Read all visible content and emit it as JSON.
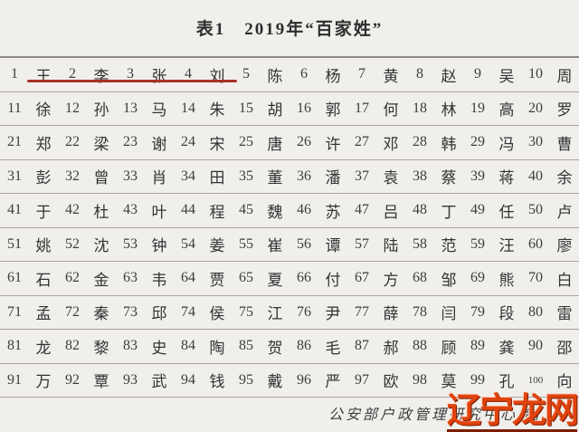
{
  "title": "表1　2019年“百家姓”",
  "rows": [
    [
      {
        "n": "1",
        "s": "王"
      },
      {
        "n": "2",
        "s": "李"
      },
      {
        "n": "3",
        "s": "张"
      },
      {
        "n": "4",
        "s": "刘"
      },
      {
        "n": "5",
        "s": "陈"
      },
      {
        "n": "6",
        "s": "杨"
      },
      {
        "n": "7",
        "s": "黄"
      },
      {
        "n": "8",
        "s": "赵"
      },
      {
        "n": "9",
        "s": "吴"
      },
      {
        "n": "10",
        "s": "周"
      }
    ],
    [
      {
        "n": "11",
        "s": "徐"
      },
      {
        "n": "12",
        "s": "孙"
      },
      {
        "n": "13",
        "s": "马"
      },
      {
        "n": "14",
        "s": "朱"
      },
      {
        "n": "15",
        "s": "胡"
      },
      {
        "n": "16",
        "s": "郭"
      },
      {
        "n": "17",
        "s": "何"
      },
      {
        "n": "18",
        "s": "林"
      },
      {
        "n": "19",
        "s": "高"
      },
      {
        "n": "20",
        "s": "罗"
      }
    ],
    [
      {
        "n": "21",
        "s": "郑"
      },
      {
        "n": "22",
        "s": "梁"
      },
      {
        "n": "23",
        "s": "谢"
      },
      {
        "n": "24",
        "s": "宋"
      },
      {
        "n": "25",
        "s": "唐"
      },
      {
        "n": "26",
        "s": "许"
      },
      {
        "n": "27",
        "s": "邓"
      },
      {
        "n": "28",
        "s": "韩"
      },
      {
        "n": "29",
        "s": "冯"
      },
      {
        "n": "30",
        "s": "曹"
      }
    ],
    [
      {
        "n": "31",
        "s": "彭"
      },
      {
        "n": "32",
        "s": "曾"
      },
      {
        "n": "33",
        "s": "肖"
      },
      {
        "n": "34",
        "s": "田"
      },
      {
        "n": "35",
        "s": "董"
      },
      {
        "n": "36",
        "s": "潘"
      },
      {
        "n": "37",
        "s": "袁"
      },
      {
        "n": "38",
        "s": "蔡"
      },
      {
        "n": "39",
        "s": "蒋"
      },
      {
        "n": "40",
        "s": "余"
      }
    ],
    [
      {
        "n": "41",
        "s": "于"
      },
      {
        "n": "42",
        "s": "杜"
      },
      {
        "n": "43",
        "s": "叶"
      },
      {
        "n": "44",
        "s": "程"
      },
      {
        "n": "45",
        "s": "魏"
      },
      {
        "n": "46",
        "s": "苏"
      },
      {
        "n": "47",
        "s": "吕"
      },
      {
        "n": "48",
        "s": "丁"
      },
      {
        "n": "49",
        "s": "任"
      },
      {
        "n": "50",
        "s": "卢"
      }
    ],
    [
      {
        "n": "51",
        "s": "姚"
      },
      {
        "n": "52",
        "s": "沈"
      },
      {
        "n": "53",
        "s": "钟"
      },
      {
        "n": "54",
        "s": "姜"
      },
      {
        "n": "55",
        "s": "崔"
      },
      {
        "n": "56",
        "s": "谭"
      },
      {
        "n": "57",
        "s": "陆"
      },
      {
        "n": "58",
        "s": "范"
      },
      {
        "n": "59",
        "s": "汪"
      },
      {
        "n": "60",
        "s": "廖"
      }
    ],
    [
      {
        "n": "61",
        "s": "石"
      },
      {
        "n": "62",
        "s": "金"
      },
      {
        "n": "63",
        "s": "韦"
      },
      {
        "n": "64",
        "s": "贾"
      },
      {
        "n": "65",
        "s": "夏"
      },
      {
        "n": "66",
        "s": "付"
      },
      {
        "n": "67",
        "s": "方"
      },
      {
        "n": "68",
        "s": "邹"
      },
      {
        "n": "69",
        "s": "熊"
      },
      {
        "n": "70",
        "s": "白"
      }
    ],
    [
      {
        "n": "71",
        "s": "孟"
      },
      {
        "n": "72",
        "s": "秦"
      },
      {
        "n": "73",
        "s": "邱"
      },
      {
        "n": "74",
        "s": "侯"
      },
      {
        "n": "75",
        "s": "江"
      },
      {
        "n": "76",
        "s": "尹"
      },
      {
        "n": "77",
        "s": "薛"
      },
      {
        "n": "78",
        "s": "闫"
      },
      {
        "n": "79",
        "s": "段"
      },
      {
        "n": "80",
        "s": "雷"
      }
    ],
    [
      {
        "n": "81",
        "s": "龙"
      },
      {
        "n": "82",
        "s": "黎"
      },
      {
        "n": "83",
        "s": "史"
      },
      {
        "n": "84",
        "s": "陶"
      },
      {
        "n": "85",
        "s": "贺"
      },
      {
        "n": "86",
        "s": "毛"
      },
      {
        "n": "87",
        "s": "郝"
      },
      {
        "n": "88",
        "s": "顾"
      },
      {
        "n": "89",
        "s": "龚"
      },
      {
        "n": "90",
        "s": "邵"
      }
    ],
    [
      {
        "n": "91",
        "s": "万"
      },
      {
        "n": "92",
        "s": "覃"
      },
      {
        "n": "93",
        "s": "武"
      },
      {
        "n": "94",
        "s": "钱"
      },
      {
        "n": "95",
        "s": "戴"
      },
      {
        "n": "96",
        "s": "严"
      },
      {
        "n": "97",
        "s": "欧"
      },
      {
        "n": "98",
        "s": "莫"
      },
      {
        "n": "99",
        "s": "孔"
      },
      {
        "n": "100",
        "s": "向"
      }
    ]
  ],
  "footer": "公安部户政管理研究中心  制",
  "watermark": "辽宁龙网",
  "colors": {
    "underline": "#a93226",
    "watermark": "#e0430e",
    "row_border": "#a8a49e",
    "background": "#f1efec"
  }
}
